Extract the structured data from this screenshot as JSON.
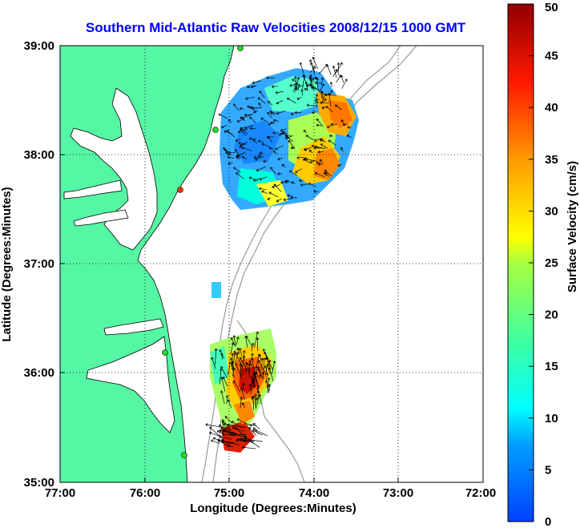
{
  "title": "Southern Mid-Atlantic Raw Velocities 2008/12/15 1000 GMT",
  "xlabel": "Longitude (Degrees:Minutes)",
  "ylabel": "Latitude (Degrees:Minutes)",
  "x_ticks": [
    "77:00",
    "76:00",
    "75:00",
    "74:00",
    "73:00",
    "72:00"
  ],
  "y_ticks": [
    "39:00",
    "38:00",
    "37:00",
    "36:00",
    "35:00"
  ],
  "colorbar": {
    "label": "Surface Velocity (cm/s)",
    "ticks": [
      "0",
      "5",
      "10",
      "15",
      "20",
      "25",
      "30",
      "35",
      "40",
      "45",
      "50"
    ],
    "range": [
      0,
      50
    ]
  },
  "colors": {
    "land": "#55f7a4",
    "water": "#ffffff",
    "title": "#0000ff",
    "station": "#22dd22",
    "station_active": "#ff3300"
  },
  "map_extent": {
    "lon": [
      -77,
      -72
    ],
    "lat": [
      35,
      39
    ]
  }
}
